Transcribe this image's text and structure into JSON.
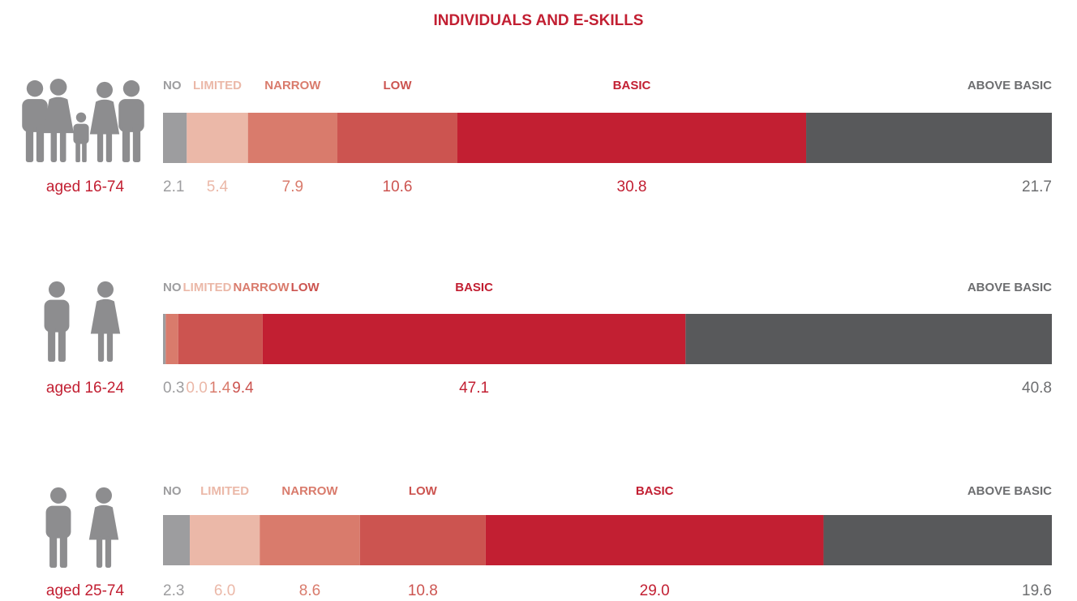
{
  "title": "INDIVIDUALS AND E-SKILLS",
  "chart_data": [
    {
      "type": "stacked_bar",
      "label": "aged 16-74",
      "categories": [
        "NO",
        "LIMITED",
        "NARROW",
        "LOW",
        "BASIC",
        "ABOVE BASIC"
      ],
      "values": [
        2.1,
        5.4,
        7.9,
        10.6,
        30.8,
        21.7
      ],
      "colors": [
        "#9d9d9f",
        "#ebb8a8",
        "#d97b6c",
        "#cc5450",
        "#c21f32",
        "#58595b"
      ]
    },
    {
      "type": "stacked_bar",
      "label": "aged 16-24",
      "categories": [
        "NO",
        "LIMITED",
        "NARROW",
        "LOW",
        "BASIC",
        "ABOVE BASIC"
      ],
      "values": [
        0.3,
        0.0,
        1.4,
        9.4,
        47.1,
        40.8
      ],
      "value_labels": [
        "0.3",
        "0.0",
        "1.4",
        "9.4",
        "47.1",
        "40.8"
      ],
      "colors": [
        "#9d9d9f",
        "#ebb8a8",
        "#d97b6c",
        "#cc5450",
        "#c21f32",
        "#58595b"
      ]
    },
    {
      "type": "stacked_bar",
      "label": "aged 25-74",
      "categories": [
        "NO",
        "LIMITED",
        "NARROW",
        "LOW",
        "BASIC",
        "ABOVE BASIC"
      ],
      "values": [
        2.3,
        6.0,
        8.6,
        10.8,
        29.0,
        19.6
      ],
      "value_labels": [
        "2.3",
        "6.0",
        "8.6",
        "10.8",
        "29.0",
        "19.6"
      ],
      "colors": [
        "#9d9d9f",
        "#ebb8a8",
        "#d97b6c",
        "#cc5450",
        "#c21f32",
        "#58595b"
      ]
    }
  ]
}
